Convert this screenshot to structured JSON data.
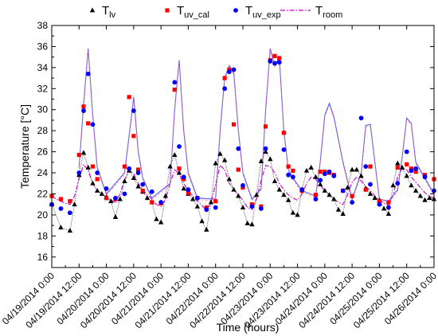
{
  "chart_data": {
    "type": "line",
    "xlabel": "Time (hours)",
    "ylabel": "Temperature [°C]",
    "ylim": [
      15,
      38
    ],
    "yticks": [
      16,
      18,
      20,
      22,
      24,
      26,
      28,
      30,
      32,
      34,
      36,
      38
    ],
    "x_tick_labels": [
      "04/19/2014 0:00",
      "04/19/2014 12:00",
      "04/20/2014 0:00",
      "04/20/2014 12:00",
      "04/21/2014 0:00",
      "04/21/2014 12:00",
      "04/22/2014 0:00",
      "04/22/2014 12:00",
      "04/23/2014 0:00",
      "04/23/2014 12:00",
      "04/24/2014 0:00",
      "04/24/2014 12:00",
      "04/25/2014 0:00",
      "04/25/2014 12:00",
      "04/26/2014 0:00"
    ],
    "x_unit": "hours since 04/19/2014 0:00",
    "grid": false,
    "legend_position": "top",
    "series": [
      {
        "key": "T_lv",
        "main": "T",
        "sub": "lv",
        "color": "#000000",
        "marker": "triangle",
        "x": [
          0,
          4,
          8,
          10,
          12,
          14,
          16,
          18,
          20,
          22,
          24,
          26,
          28,
          30,
          32,
          34,
          36,
          38,
          40,
          42,
          44,
          46,
          48,
          50,
          52,
          54,
          56,
          58,
          60,
          62,
          64,
          66,
          68,
          70,
          72,
          74,
          76,
          78,
          80,
          82,
          84,
          86,
          88,
          90,
          92,
          94,
          96,
          98,
          100,
          102,
          104,
          106,
          108,
          110,
          112,
          114,
          116,
          118,
          120,
          122,
          124,
          126,
          128,
          130,
          132,
          134,
          136,
          138,
          140,
          142,
          144,
          146,
          148,
          150,
          152,
          154,
          156,
          158,
          160,
          162,
          164,
          166,
          168
        ],
        "values": [
          21.0,
          18.8,
          18.5,
          21.0,
          23.8,
          25.9,
          24.5,
          23.0,
          22.3,
          22.0,
          21.7,
          21.3,
          19.8,
          21.5,
          23.2,
          24.2,
          23.5,
          22.7,
          22.2,
          21.6,
          21.2,
          19.6,
          19.3,
          21.8,
          24.6,
          25.7,
          24.0,
          22.5,
          22.0,
          21.5,
          20.8,
          19.4,
          18.6,
          21.2,
          24.9,
          25.8,
          25.2,
          23.4,
          22.4,
          21.8,
          20.7,
          19.2,
          19.1,
          21.9,
          25.1,
          26.0,
          25.3,
          23.2,
          22.4,
          21.9,
          21.4,
          20.2,
          20.0,
          22.4,
          24.2,
          24.5,
          23.6,
          22.9,
          22.3,
          21.9,
          21.5,
          20.5,
          20.1,
          22.6,
          24.3,
          24.3,
          23.7,
          22.5,
          22.0,
          21.6,
          21.4,
          20.6,
          20.1,
          22.8,
          24.9,
          24.5,
          23.7,
          22.8,
          22.3,
          21.8,
          21.4,
          21.6,
          21.5
        ]
      },
      {
        "key": "T_uv_cal",
        "main": "T",
        "sub": "uv_cal",
        "color": "#ff0000",
        "marker": "square",
        "x": [
          0,
          4,
          8,
          12,
          14,
          16,
          18,
          20,
          24,
          28,
          32,
          34,
          36,
          38,
          40,
          44,
          48,
          54,
          56,
          58,
          60,
          64,
          68,
          72,
          76,
          78,
          80,
          82,
          84,
          88,
          92,
          94,
          96,
          98,
          100,
          102,
          104,
          106,
          110,
          116,
          118,
          120,
          122,
          124,
          128,
          132,
          138,
          140,
          144,
          148,
          152,
          156,
          158,
          160,
          164,
          168
        ],
        "values": [
          21.8,
          21.5,
          21.3,
          25.7,
          30.3,
          28.7,
          24.6,
          23.4,
          21.6,
          21.5,
          24.6,
          31.2,
          27.5,
          24.3,
          22.3,
          21.2,
          21.1,
          31.9,
          24.4,
          23.4,
          22.1,
          21.6,
          20.7,
          21.3,
          33.0,
          33.8,
          28.6,
          24.3,
          22.6,
          21.0,
          20.8,
          28.4,
          34.7,
          35.1,
          34.9,
          27.8,
          24.6,
          24.2,
          22.3,
          21.9,
          24.1,
          24.1,
          24.0,
          23.8,
          22.3,
          21.8,
          22.4,
          24.6,
          21.3,
          21.2,
          24.5,
          24.8,
          24.4,
          24.1,
          23.8,
          23.4
        ]
      },
      {
        "key": "T_uv_exp",
        "main": "T",
        "sub": "uv_exp",
        "color": "#0000ff",
        "marker": "circle",
        "x": [
          0,
          4,
          8,
          12,
          14,
          16,
          18,
          20,
          24,
          28,
          32,
          34,
          36,
          38,
          40,
          44,
          48,
          54,
          56,
          58,
          60,
          64,
          68,
          72,
          76,
          78,
          80,
          82,
          84,
          88,
          92,
          94,
          96,
          98,
          100,
          102,
          104,
          106,
          110,
          116,
          118,
          120,
          122,
          124,
          128,
          132,
          136,
          138,
          140,
          144,
          148,
          152,
          156,
          158,
          160,
          164,
          168
        ],
        "values": [
          21.0,
          20.6,
          20.2,
          24.0,
          29.9,
          33.4,
          28.6,
          24.0,
          22.5,
          21.6,
          22.0,
          24.4,
          29.9,
          24.0,
          22.9,
          22.2,
          21.2,
          32.6,
          26.5,
          23.6,
          22.4,
          21.6,
          20.5,
          20.7,
          32.0,
          33.6,
          33.8,
          26.3,
          22.8,
          20.8,
          20.6,
          26.3,
          34.6,
          34.4,
          34.5,
          26.2,
          23.8,
          23.6,
          22.4,
          21.5,
          23.3,
          23.9,
          24.1,
          23.7,
          22.3,
          21.2,
          29.2,
          24.6,
          22.9,
          21.0,
          20.7,
          23.0,
          26.0,
          24.2,
          24.4,
          23.6,
          22.3
        ]
      },
      {
        "key": "T_room",
        "main": "T",
        "sub": "room",
        "color": "#cc00cc",
        "x": [
          0,
          2,
          4,
          6,
          8,
          10,
          12,
          14,
          16,
          18,
          20,
          22,
          24,
          26,
          28,
          30,
          32,
          34,
          36,
          38,
          40,
          42,
          44,
          46,
          48,
          50,
          52,
          54,
          56,
          58,
          60,
          62,
          64,
          66,
          68,
          70,
          72,
          74,
          76,
          78,
          80,
          82,
          84,
          86,
          88,
          90,
          92,
          94,
          96,
          98,
          100,
          102,
          104,
          106,
          108,
          110,
          112,
          114,
          116,
          118,
          120,
          122,
          124,
          126,
          128,
          130,
          132,
          134,
          136,
          138,
          140,
          142,
          144,
          146,
          148,
          150,
          152,
          154,
          156,
          158,
          160,
          162,
          164,
          166,
          168
        ],
        "values": [
          21.8,
          21.5,
          21.3,
          21.1,
          21.0,
          21.8,
          23.4,
          24.8,
          24.2,
          23.0,
          22.3,
          22.0,
          21.7,
          21.4,
          21.2,
          22.0,
          23.3,
          24.3,
          23.9,
          23.0,
          22.4,
          21.9,
          21.5,
          21.0,
          20.8,
          21.5,
          23.0,
          24.3,
          23.9,
          23.0,
          22.3,
          21.8,
          21.3,
          20.9,
          20.4,
          21.2,
          22.9,
          24.7,
          24.3,
          23.0,
          22.4,
          21.9,
          21.4,
          20.7,
          20.5,
          21.5,
          23.3,
          24.7,
          24.6,
          24.0,
          23.0,
          22.4,
          21.9,
          21.6,
          21.4,
          22.0,
          23.0,
          23.6,
          23.4,
          22.8,
          22.3,
          21.9,
          21.5,
          21.2,
          21.0,
          21.9,
          23.1,
          23.6,
          23.2,
          22.7,
          22.3,
          21.8,
          21.4,
          21.1,
          20.9,
          21.9,
          23.6,
          24.4,
          24.3,
          23.6,
          23.1,
          22.6,
          22.1,
          21.8,
          21.6
        ]
      }
    ],
    "peaks": {
      "x": [
        12,
        14,
        16,
        18,
        20,
        24,
        32,
        34,
        36,
        38,
        40,
        44,
        52,
        54,
        56,
        58,
        60,
        64,
        72,
        74,
        76,
        78,
        80,
        82,
        84,
        88,
        92,
        94,
        96,
        98,
        100,
        102,
        104,
        106,
        110,
        116,
        118,
        120,
        122,
        124,
        128,
        132,
        136,
        138,
        140,
        144,
        148,
        152,
        154,
        156,
        158,
        160,
        164,
        168
      ],
      "values": [
        24.5,
        30.5,
        35.8,
        29.5,
        24.5,
        22.0,
        24.0,
        27.5,
        31.2,
        26.0,
        23.5,
        21.6,
        23.0,
        30.0,
        34.7,
        28.0,
        24.0,
        21.6,
        21.5,
        28.0,
        33.0,
        34.2,
        33.5,
        28.0,
        24.0,
        21.5,
        22.5,
        30.0,
        35.8,
        34.2,
        35.0,
        28.0,
        24.3,
        23.5,
        22.3,
        21.8,
        25.0,
        29.5,
        30.6,
        29.3,
        25.0,
        21.5,
        24.0,
        28.5,
        28.6,
        21.5,
        21.3,
        22.4,
        25.5,
        29.2,
        28.7,
        25.0,
        23.5,
        22.0
      ]
    }
  }
}
